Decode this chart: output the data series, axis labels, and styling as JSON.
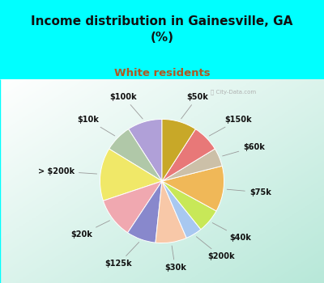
{
  "title": "Income distribution in Gainesville, GA\n(%)",
  "subtitle": "White residents",
  "bg_cyan": "#00FFFF",
  "labels": [
    "$100k",
    "$10k",
    "> $200k",
    "$20k",
    "$125k",
    "$30k",
    "$200k",
    "$40k",
    "$75k",
    "$60k",
    "$150k",
    "$50k"
  ],
  "sizes": [
    9.5,
    7.5,
    14.5,
    11.0,
    8.0,
    8.5,
    4.5,
    6.5,
    12.5,
    5.0,
    7.5,
    9.5
  ],
  "colors": [
    "#b0a0d8",
    "#b0c8a8",
    "#f0e868",
    "#f0a8b0",
    "#8888cc",
    "#f8c8a8",
    "#a8c8f0",
    "#c8e858",
    "#f0b858",
    "#ccc0a8",
    "#e87878",
    "#c8a828"
  ],
  "startangle": 90,
  "title_fontsize": 11,
  "subtitle_fontsize": 9.5,
  "label_fontsize": 7,
  "title_color": "#111111",
  "subtitle_color": "#b05820",
  "watermark": "ⓘ City-Data.com"
}
